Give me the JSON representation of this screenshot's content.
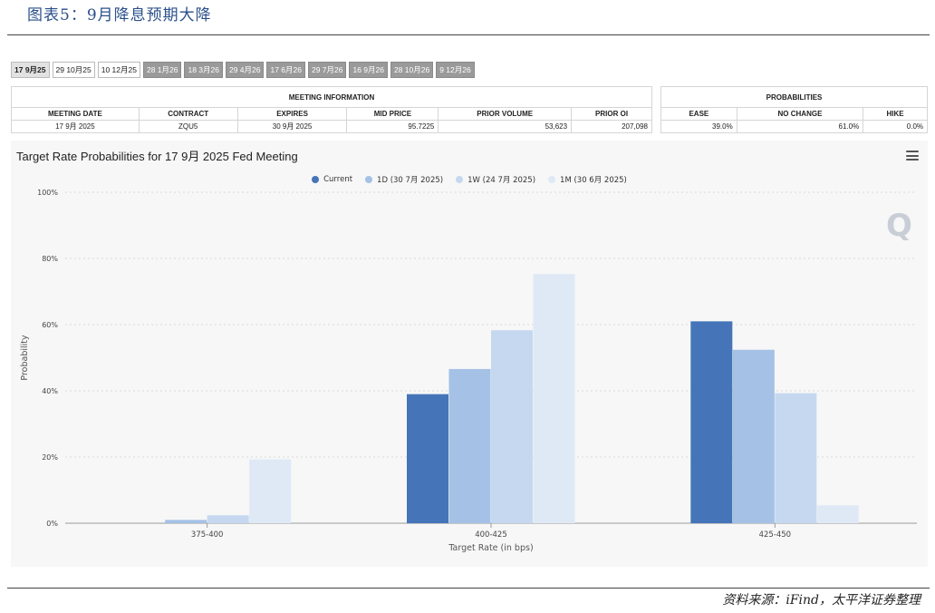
{
  "figure_title": "图表5：9月降息预期大降",
  "source_note": "资料来源：iFind，太平洋证券整理",
  "tabs": [
    {
      "label": "17 9月25",
      "state": "active"
    },
    {
      "label": "29 10月25",
      "state": "normal"
    },
    {
      "label": "10 12月25",
      "state": "normal"
    },
    {
      "label": "28 1月26",
      "state": "future"
    },
    {
      "label": "18 3月26",
      "state": "future"
    },
    {
      "label": "29 4月26",
      "state": "future"
    },
    {
      "label": "17 6月26",
      "state": "future"
    },
    {
      "label": "29 7月26",
      "state": "future"
    },
    {
      "label": "16 9月26",
      "state": "future"
    },
    {
      "label": "28 10月26",
      "state": "future"
    },
    {
      "label": "9 12月26",
      "state": "future"
    }
  ],
  "meeting_info": {
    "group_label": "MEETING INFORMATION",
    "headers": [
      "MEETING DATE",
      "CONTRACT",
      "EXPIRES",
      "MID PRICE",
      "PRIOR VOLUME",
      "PRIOR OI"
    ],
    "row": [
      "17 9月 2025",
      "ZQU5",
      "30 9月 2025",
      "95.7225",
      "53,623",
      "207,098"
    ]
  },
  "probabilities": {
    "group_label": "PROBABILITIES",
    "headers": [
      "EASE",
      "NO CHANGE",
      "HIKE"
    ],
    "row": [
      "39.0%",
      "61.0%",
      "0.0%"
    ]
  },
  "watermark": "Q",
  "chart_data": {
    "type": "bar",
    "title": "Target Rate Probabilities for 17 9月 2025 Fed Meeting",
    "xlabel": "Target Rate (in bps)",
    "ylabel": "Probability",
    "ylim": [
      0,
      100
    ],
    "yticks": [
      "0%",
      "20%",
      "40%",
      "60%",
      "80%",
      "100%"
    ],
    "grid": true,
    "legend_position": "top-center",
    "categories": [
      "375-400",
      "400-425",
      "425-450"
    ],
    "series": [
      {
        "name": "Current",
        "color": "#4575b8",
        "values": [
          0,
          39.0,
          61.0
        ]
      },
      {
        "name": "1D (30 7月 2025)",
        "color": "#a5c1e6",
        "values": [
          1.0,
          46.6,
          52.4
        ]
      },
      {
        "name": "1W (24 7月 2025)",
        "color": "#c6d8f0",
        "values": [
          2.4,
          58.3,
          39.3
        ]
      },
      {
        "name": "1M (30 6月 2025)",
        "color": "#dfe9f6",
        "values": [
          19.3,
          75.3,
          5.4
        ]
      }
    ]
  }
}
